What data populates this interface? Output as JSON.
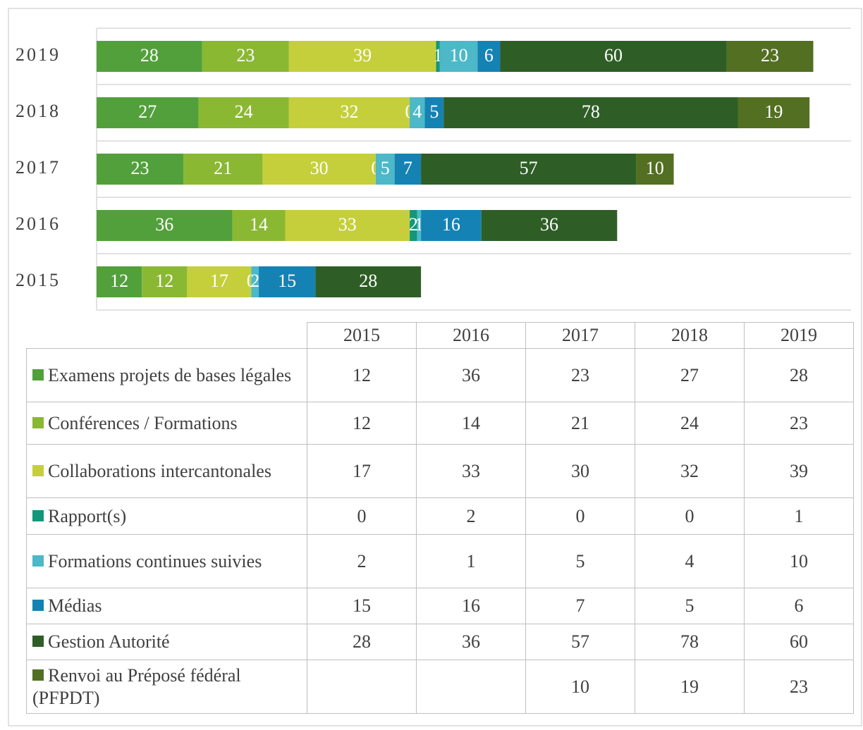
{
  "chart_data": {
    "type": "bar",
    "orientation": "horizontal",
    "stacked": true,
    "categories": [
      "2015",
      "2016",
      "2017",
      "2018",
      "2019"
    ],
    "xlim": [
      0,
      200
    ],
    "series": [
      {
        "name": "Examens projets de bases légales",
        "color": "#52a03b",
        "values": [
          12,
          36,
          23,
          27,
          28
        ]
      },
      {
        "name": "Conférences / Formations",
        "color": "#8ab833",
        "values": [
          12,
          14,
          21,
          24,
          23
        ]
      },
      {
        "name": "Collaborations intercantonales",
        "color": "#c5cf3c",
        "values": [
          17,
          33,
          30,
          32,
          39
        ]
      },
      {
        "name": "Rapport(s)",
        "color": "#12977a",
        "values": [
          0,
          2,
          0,
          0,
          1
        ]
      },
      {
        "name": "Formations continues suivies",
        "color": "#4cb8c8",
        "values": [
          2,
          1,
          5,
          4,
          10
        ]
      },
      {
        "name": "Médias",
        "color": "#1582b4",
        "values": [
          15,
          16,
          7,
          5,
          6
        ]
      },
      {
        "name": "Gestion Autorité",
        "color": "#2e5e26",
        "values": [
          28,
          36,
          57,
          78,
          60
        ]
      },
      {
        "name": "Renvoi au Préposé fédéral (PFPDT)",
        "color": "#536f22",
        "values": [
          null,
          null,
          10,
          19,
          23
        ]
      }
    ]
  }
}
